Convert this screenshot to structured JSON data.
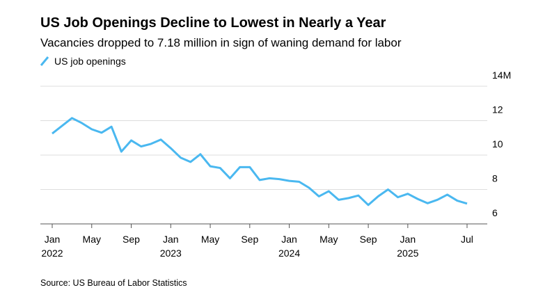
{
  "chart_data": {
    "type": "line",
    "title": "US Job Openings Decline to Lowest in Nearly a Year",
    "subtitle": "Vacancies dropped to 7.18 million in sign of waning demand for labor",
    "source": "Source: US Bureau of Labor Statistics",
    "x": [
      "2022-01",
      "2022-02",
      "2022-03",
      "2022-04",
      "2022-05",
      "2022-06",
      "2022-07",
      "2022-08",
      "2022-09",
      "2022-10",
      "2022-11",
      "2022-12",
      "2023-01",
      "2023-02",
      "2023-03",
      "2023-04",
      "2023-05",
      "2023-06",
      "2023-07",
      "2023-08",
      "2023-09",
      "2023-10",
      "2023-11",
      "2023-12",
      "2024-01",
      "2024-02",
      "2024-03",
      "2024-04",
      "2024-05",
      "2024-06",
      "2024-07",
      "2024-08",
      "2024-09",
      "2024-10",
      "2024-11",
      "2024-12",
      "2025-01",
      "2025-02",
      "2025-03",
      "2025-04",
      "2025-05",
      "2025-06",
      "2025-07"
    ],
    "series": [
      {
        "name": "US job openings",
        "color": "#4ab8f0",
        "values": [
          11.25,
          11.7,
          12.15,
          11.86,
          11.5,
          11.3,
          11.65,
          10.2,
          10.85,
          10.5,
          10.65,
          10.9,
          10.4,
          9.85,
          9.6,
          10.05,
          9.35,
          9.25,
          8.65,
          9.3,
          9.3,
          8.55,
          8.65,
          8.6,
          8.5,
          8.45,
          8.1,
          7.6,
          7.9,
          7.4,
          7.5,
          7.65,
          7.1,
          7.6,
          8.0,
          7.55,
          7.75,
          7.45,
          7.2,
          7.4,
          7.7,
          7.35,
          7.18
        ]
      }
    ],
    "ylim": [
      6,
      14
    ],
    "yticks": [
      6,
      8,
      10,
      12,
      {
        "value": 14,
        "label": "14M"
      }
    ],
    "xticks": [
      {
        "value": "2022-01",
        "label": "Jan 2022"
      },
      {
        "value": "2022-05",
        "label": "May"
      },
      {
        "value": "2022-09",
        "label": "Sep"
      },
      {
        "value": "2023-01",
        "label": "Jan 2023"
      },
      {
        "value": "2023-05",
        "label": "May"
      },
      {
        "value": "2023-09",
        "label": "Sep"
      },
      {
        "value": "2024-01",
        "label": "Jan 2024"
      },
      {
        "value": "2024-05",
        "label": "May"
      },
      {
        "value": "2024-09",
        "label": "Sep"
      },
      {
        "value": "2025-01",
        "label": "Jan 2025"
      },
      {
        "value": "2025-07",
        "label": "Jul"
      }
    ],
    "grid": true
  }
}
